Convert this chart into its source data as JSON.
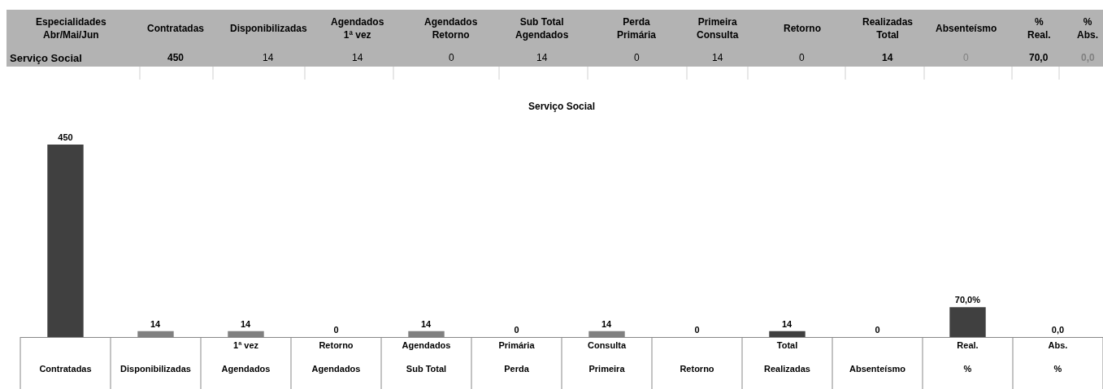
{
  "chart_data": [
    {
      "type": "other",
      "annotations": [
        "Especialidades\nAbr/Mai/Jun",
        "Contratadas",
        "Disponibilizadas",
        "Agendados\n1ª vez",
        "Agendados\nRetorno",
        "Sub Total\nAgendados",
        "Perda\nPrimária",
        "Primeira\nConsulta",
        "Retorno",
        "Realizadas\nTotal",
        "Absenteísmo",
        "%\nReal.",
        "%\nAbs.",
        "Serviço Social",
        "450",
        "14",
        "14",
        "0",
        "14",
        "0",
        "14",
        "0",
        "14",
        "0",
        "70,0",
        "0,0"
      ]
    },
    {
      "type": "bar",
      "title": "Serviço Social",
      "categories": [
        "Contratadas",
        "Disponibilizadas",
        "1ª vez\nAgendados",
        "Retorno\nAgendados",
        "Agendados\nSub Total",
        "Primária\nPerda",
        "Consulta\nPrimeira",
        "Retorno",
        "Total\nRealizadas",
        "Absenteísmo",
        "Real.\n%",
        "Abs.\n%"
      ],
      "values": [
        450,
        14,
        14,
        0,
        14,
        0,
        14,
        0,
        14,
        0,
        70,
        0
      ],
      "colors": [
        "#404040",
        "#808080",
        "#808080",
        "#808080",
        "#808080",
        "#808080",
        "#808080",
        "#808080",
        "#404040",
        "#808080",
        "#404040",
        "#808080"
      ],
      "value_labels": [
        "450",
        "14",
        "14",
        "0",
        "14",
        "0",
        "14",
        "0",
        "14",
        "0",
        "70,0%",
        "0,0"
      ]
    }
  ]
}
